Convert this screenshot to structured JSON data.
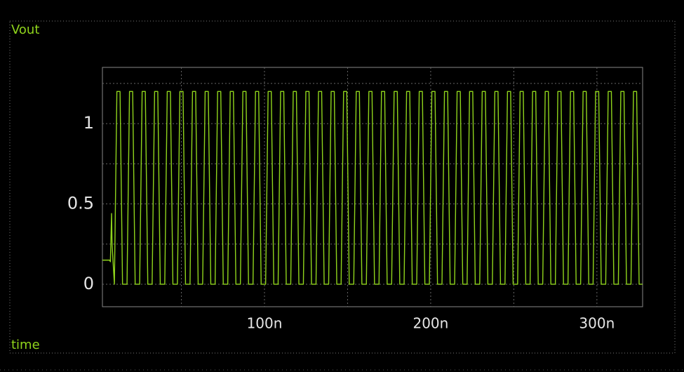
{
  "chart_data": {
    "type": "line",
    "x_label": "time",
    "x": [
      2.5,
      6.8,
      7.3,
      8.0,
      8.3,
      9.7,
      11.2,
      13.1,
      14.6,
      17.3,
      18.8,
      20.7,
      22.2,
      24.9,
      26.4,
      28.3,
      29.8,
      32.4,
      33.9,
      35.8,
      37.3,
      40.0,
      41.5,
      43.4,
      44.9,
      47.6,
      49.1,
      51.0,
      52.5,
      55.2,
      56.7,
      58.6,
      60.1,
      62.8,
      64.3,
      66.2,
      67.7,
      70.3,
      71.8,
      73.7,
      75.2,
      77.9,
      79.4,
      81.3,
      82.8,
      85.5,
      87.0,
      88.9,
      90.4,
      93.1,
      94.6,
      96.5,
      98.0,
      100.7,
      102.2,
      104.1,
      105.6,
      108.2,
      109.7,
      111.6,
      113.1,
      115.8,
      117.3,
      119.2,
      120.7,
      123.4,
      124.9,
      126.8,
      128.3,
      131.0,
      132.5,
      134.4,
      135.9,
      138.6,
      140.1,
      142.0,
      143.5,
      146.1,
      147.6,
      149.5,
      151.0,
      153.7,
      155.2,
      157.1,
      158.6,
      161.3,
      162.8,
      164.7,
      166.2,
      168.9,
      170.4,
      172.3,
      173.8,
      176.5,
      178.0,
      179.9,
      181.4,
      184.0,
      185.5,
      187.4,
      188.9,
      191.6,
      193.1,
      195.0,
      196.5,
      199.2,
      200.7,
      202.6,
      204.1,
      206.8,
      208.3,
      210.2,
      211.7,
      214.4,
      215.9,
      217.8,
      219.3,
      221.9,
      223.4,
      225.3,
      226.8,
      229.5,
      231.0,
      232.9,
      234.4,
      237.1,
      238.6,
      240.5,
      242.0,
      244.7,
      246.2,
      248.1,
      249.6,
      252.3,
      253.8,
      255.7,
      257.2,
      259.8,
      261.3,
      263.2,
      264.7,
      267.4,
      268.9,
      270.8,
      272.3,
      275.0,
      276.5,
      278.4,
      279.9,
      282.6,
      284.1,
      286.0,
      287.5,
      290.2,
      291.7,
      293.6,
      295.1,
      297.7,
      299.2,
      301.1,
      302.6,
      305.3,
      306.8,
      308.7,
      310.2,
      312.9,
      314.4,
      316.3,
      317.8,
      320.5,
      322.0,
      323.9,
      325.4,
      327.4
    ],
    "series": [
      {
        "name": "Vout",
        "color": "#8fd41c",
        "values": [
          0.15,
          0.15,
          0.14,
          0.44,
          0.25,
          0,
          1.2,
          1.2,
          0,
          0,
          1.2,
          1.2,
          0,
          0,
          1.2,
          1.2,
          0,
          0,
          1.2,
          1.2,
          0,
          0,
          1.2,
          1.2,
          0,
          0,
          1.2,
          1.2,
          0,
          0,
          1.2,
          1.2,
          0,
          0,
          1.2,
          1.2,
          0,
          0,
          1.2,
          1.2,
          0,
          0,
          1.2,
          1.2,
          0,
          0,
          1.2,
          1.2,
          0,
          0,
          1.2,
          1.2,
          0,
          0,
          1.2,
          1.2,
          0,
          0,
          1.2,
          1.2,
          0,
          0,
          1.2,
          1.2,
          0,
          0,
          1.2,
          1.2,
          0,
          0,
          1.2,
          1.2,
          0,
          0,
          1.2,
          1.2,
          0,
          0,
          1.2,
          1.2,
          0,
          0,
          1.2,
          1.2,
          0,
          0,
          1.2,
          1.2,
          0,
          0,
          1.2,
          1.2,
          0,
          0,
          1.2,
          1.2,
          0,
          0,
          1.2,
          1.2,
          0,
          0,
          1.2,
          1.2,
          0,
          0,
          1.2,
          1.2,
          0,
          0,
          1.2,
          1.2,
          0,
          0,
          1.2,
          1.2,
          0,
          0,
          1.2,
          1.2,
          0,
          0,
          1.2,
          1.2,
          0,
          0,
          1.2,
          1.2,
          0,
          0,
          1.2,
          1.2,
          0,
          0,
          1.2,
          1.2,
          0,
          0,
          1.2,
          1.2,
          0,
          0,
          1.2,
          1.2,
          0,
          0,
          1.2,
          1.2,
          0,
          0,
          1.2,
          1.2,
          0,
          0,
          1.2,
          1.2,
          0,
          0,
          1.2,
          1.2,
          0,
          0,
          1.2,
          1.2,
          0,
          0,
          1.2,
          1.2,
          0,
          0,
          1.2,
          1.2,
          0,
          0
        ]
      }
    ],
    "xlim": [
      2.5,
      327.5
    ],
    "ylim": [
      -0.14,
      1.35
    ],
    "xticks": [
      {
        "value": 100,
        "label": "100n"
      },
      {
        "value": 200,
        "label": "200n"
      },
      {
        "value": 300,
        "label": "300n"
      }
    ],
    "yticks": [
      0,
      0.5,
      1
    ],
    "xgrid": [
      50,
      150,
      250
    ],
    "ygrid": [
      0.25,
      0.75,
      1.25
    ],
    "grid": true
  }
}
